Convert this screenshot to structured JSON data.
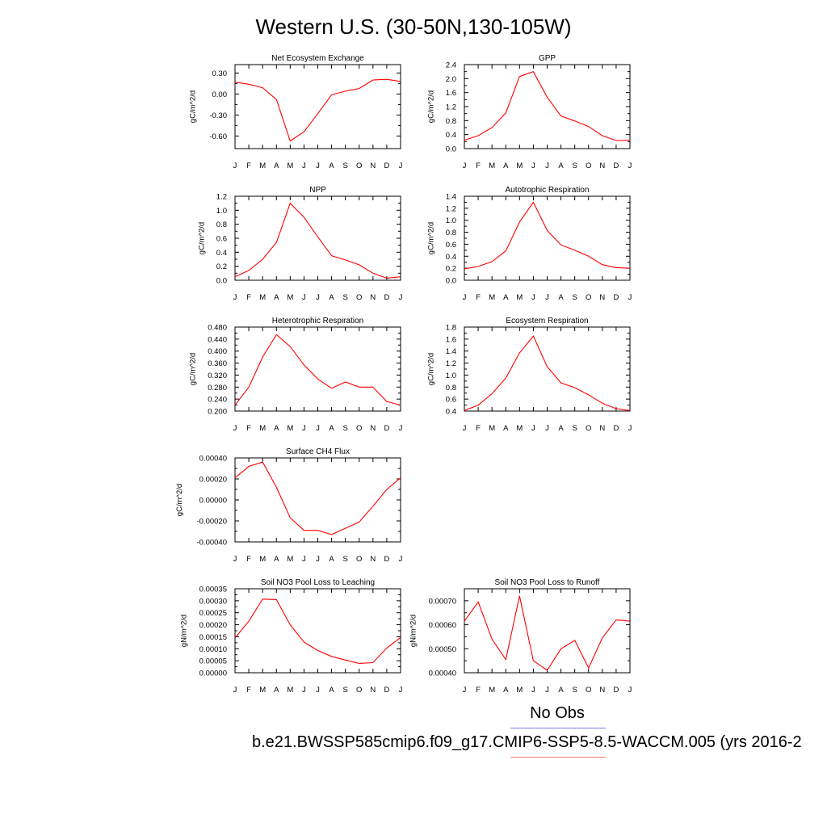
{
  "page": {
    "title": "Western U.S. (30-50N,130-105W)",
    "legend_obs": "No Obs",
    "legend_model": "b.e21.BWSSP585cmip6.f09_g17.CMIP6-SSP5-8.5-WACCM.005 (yrs 2016-2",
    "colors": {
      "model_line": "#ff0000",
      "obs_line": "#7b7bf0",
      "model_legend_line": "#f07b7b"
    }
  },
  "chart_data": [
    {
      "type": "line",
      "title": "Net Ecosystem Exchange",
      "ylabel": "gC/m^2/d",
      "x": [
        "J",
        "F",
        "M",
        "A",
        "M",
        "J",
        "J",
        "A",
        "S",
        "O",
        "N",
        "D",
        "J"
      ],
      "ylim": [
        -0.78,
        0.42
      ],
      "yticks": [
        0.3,
        0.0,
        -0.3,
        -0.6
      ],
      "yticklabels": [
        "0.30",
        "0.00",
        "-0.30",
        "-0.60"
      ],
      "series": [
        {
          "values": [
            0.17,
            0.14,
            0.09,
            -0.08,
            -0.67,
            -0.54,
            -0.28,
            -0.01,
            0.04,
            0.08,
            0.2,
            0.21,
            0.18
          ]
        }
      ]
    },
    {
      "type": "line",
      "title": "GPP",
      "ylabel": "gC/m^2/d",
      "x": [
        "J",
        "F",
        "M",
        "A",
        "M",
        "J",
        "J",
        "A",
        "S",
        "O",
        "N",
        "D",
        "J"
      ],
      "ylim": [
        0,
        2.4
      ],
      "yticks": [
        0.0,
        0.4,
        0.8,
        1.2,
        1.6,
        2.0,
        2.4
      ],
      "yticklabels": [
        "0.0",
        "0.4",
        "0.8",
        "1.2",
        "1.6",
        "2.0",
        "2.4"
      ],
      "series": [
        {
          "values": [
            0.24,
            0.37,
            0.6,
            1.02,
            2.06,
            2.2,
            1.47,
            0.93,
            0.79,
            0.63,
            0.37,
            0.23,
            0.24
          ]
        }
      ]
    },
    {
      "type": "line",
      "title": "NPP",
      "ylabel": "gC/m^2/d",
      "x": [
        "J",
        "F",
        "M",
        "A",
        "M",
        "J",
        "J",
        "A",
        "S",
        "O",
        "N",
        "D",
        "J"
      ],
      "ylim": [
        0,
        1.2
      ],
      "yticks": [
        0.0,
        0.2,
        0.4,
        0.6,
        0.8,
        1.0,
        1.2
      ],
      "yticklabels": [
        "0.0",
        "0.2",
        "0.4",
        "0.6",
        "0.8",
        "1.0",
        "1.2"
      ],
      "series": [
        {
          "values": [
            0.05,
            0.14,
            0.3,
            0.54,
            1.1,
            0.9,
            0.62,
            0.35,
            0.29,
            0.22,
            0.1,
            0.03,
            0.05
          ]
        }
      ]
    },
    {
      "type": "line",
      "title": "Autotrophic Respiration",
      "ylabel": "gC/m^2/d",
      "x": [
        "J",
        "F",
        "M",
        "A",
        "M",
        "J",
        "J",
        "A",
        "S",
        "O",
        "N",
        "D",
        "J"
      ],
      "ylim": [
        0,
        1.4
      ],
      "yticks": [
        0.0,
        0.2,
        0.4,
        0.6,
        0.8,
        1.0,
        1.2,
        1.4
      ],
      "yticklabels": [
        "0.0",
        "0.2",
        "0.4",
        "0.6",
        "0.8",
        "1.0",
        "1.2",
        "1.4"
      ],
      "series": [
        {
          "values": [
            0.19,
            0.23,
            0.31,
            0.49,
            0.97,
            1.3,
            0.83,
            0.59,
            0.5,
            0.4,
            0.26,
            0.21,
            0.2
          ]
        }
      ]
    },
    {
      "type": "line",
      "title": "Heterotrophic Respiration",
      "ylabel": "gC/m^2/d",
      "x": [
        "J",
        "F",
        "M",
        "A",
        "M",
        "J",
        "J",
        "A",
        "S",
        "O",
        "N",
        "D",
        "J"
      ],
      "ylim": [
        0.2,
        0.48
      ],
      "yticks": [
        0.2,
        0.24,
        0.28,
        0.32,
        0.36,
        0.4,
        0.44,
        0.48
      ],
      "yticklabels": [
        "0.200",
        "0.240",
        "0.280",
        "0.320",
        "0.360",
        "0.400",
        "0.440",
        "0.480"
      ],
      "series": [
        {
          "values": [
            0.22,
            0.28,
            0.38,
            0.455,
            0.415,
            0.354,
            0.307,
            0.276,
            0.297,
            0.28,
            0.28,
            0.232,
            0.22
          ]
        }
      ]
    },
    {
      "type": "line",
      "title": "Ecosystem Respiration",
      "ylabel": "gC/m^2/d",
      "x": [
        "J",
        "F",
        "M",
        "A",
        "M",
        "J",
        "J",
        "A",
        "S",
        "O",
        "N",
        "D",
        "J"
      ],
      "ylim": [
        0.4,
        1.8
      ],
      "yticks": [
        0.4,
        0.6,
        0.8,
        1.0,
        1.2,
        1.4,
        1.6,
        1.8
      ],
      "yticklabels": [
        "0.4",
        "0.6",
        "0.8",
        "1.0",
        "1.2",
        "1.4",
        "1.6",
        "1.8"
      ],
      "series": [
        {
          "values": [
            0.41,
            0.5,
            0.69,
            0.95,
            1.37,
            1.65,
            1.14,
            0.87,
            0.79,
            0.67,
            0.53,
            0.44,
            0.41
          ]
        }
      ]
    },
    {
      "type": "line",
      "title": "Surface CH4 Flux",
      "ylabel": "gC/m^2/d",
      "x": [
        "J",
        "F",
        "M",
        "A",
        "M",
        "J",
        "J",
        "A",
        "S",
        "O",
        "N",
        "D",
        "J"
      ],
      "ylim": [
        -0.0004,
        0.0004
      ],
      "yticks": [
        0.0004,
        0.0002,
        0.0,
        -0.0002,
        -0.0004
      ],
      "yticklabels": [
        "0.00040",
        "0.00020",
        "0.00000",
        "-0.00020",
        "-0.00040"
      ],
      "series": [
        {
          "values": [
            0.00021,
            0.00032,
            0.00036,
            0.00012,
            -0.00017,
            -0.00029,
            -0.00029,
            -0.00033,
            -0.00027,
            -0.00021,
            -6e-05,
            0.0001,
            0.00021
          ]
        }
      ]
    },
    {
      "type": "line",
      "title": "Soil NO3 Pool Loss to Leaching",
      "ylabel": "gN/m^2/d",
      "x": [
        "J",
        "F",
        "M",
        "A",
        "M",
        "J",
        "J",
        "A",
        "S",
        "O",
        "N",
        "D",
        "J"
      ],
      "ylim": [
        0,
        0.00035
      ],
      "yticks": [
        0.0,
        5e-05,
        0.0001,
        0.00015,
        0.0002,
        0.00025,
        0.0003,
        0.00035
      ],
      "yticklabels": [
        "0.00000",
        "0.00005",
        "0.00010",
        "0.00015",
        "0.00020",
        "0.00025",
        "0.00030",
        "0.00035"
      ],
      "series": [
        {
          "values": [
            0.000145,
            0.000215,
            0.000307,
            0.000305,
            0.0002,
            0.000128,
            9.3e-05,
            6.8e-05,
            5.3e-05,
            3.9e-05,
            4.2e-05,
            0.000103,
            0.000147
          ]
        }
      ]
    },
    {
      "type": "line",
      "title": "Soil NO3 Pool Loss to Runoff",
      "ylabel": "gN/m^2/d",
      "x": [
        "J",
        "F",
        "M",
        "A",
        "M",
        "J",
        "J",
        "A",
        "S",
        "O",
        "N",
        "D",
        "J"
      ],
      "ylim": [
        0.0004,
        0.00075
      ],
      "yticks": [
        0.0004,
        0.0005,
        0.0006,
        0.0007
      ],
      "yticklabels": [
        "0.00040",
        "0.00050",
        "0.00060",
        "0.00070"
      ],
      "series": [
        {
          "values": [
            0.000615,
            0.000695,
            0.00054,
            0.000455,
            0.00072,
            0.00045,
            0.00041,
            0.0005,
            0.000535,
            0.00042,
            0.000545,
            0.00062,
            0.000615
          ]
        }
      ]
    }
  ]
}
